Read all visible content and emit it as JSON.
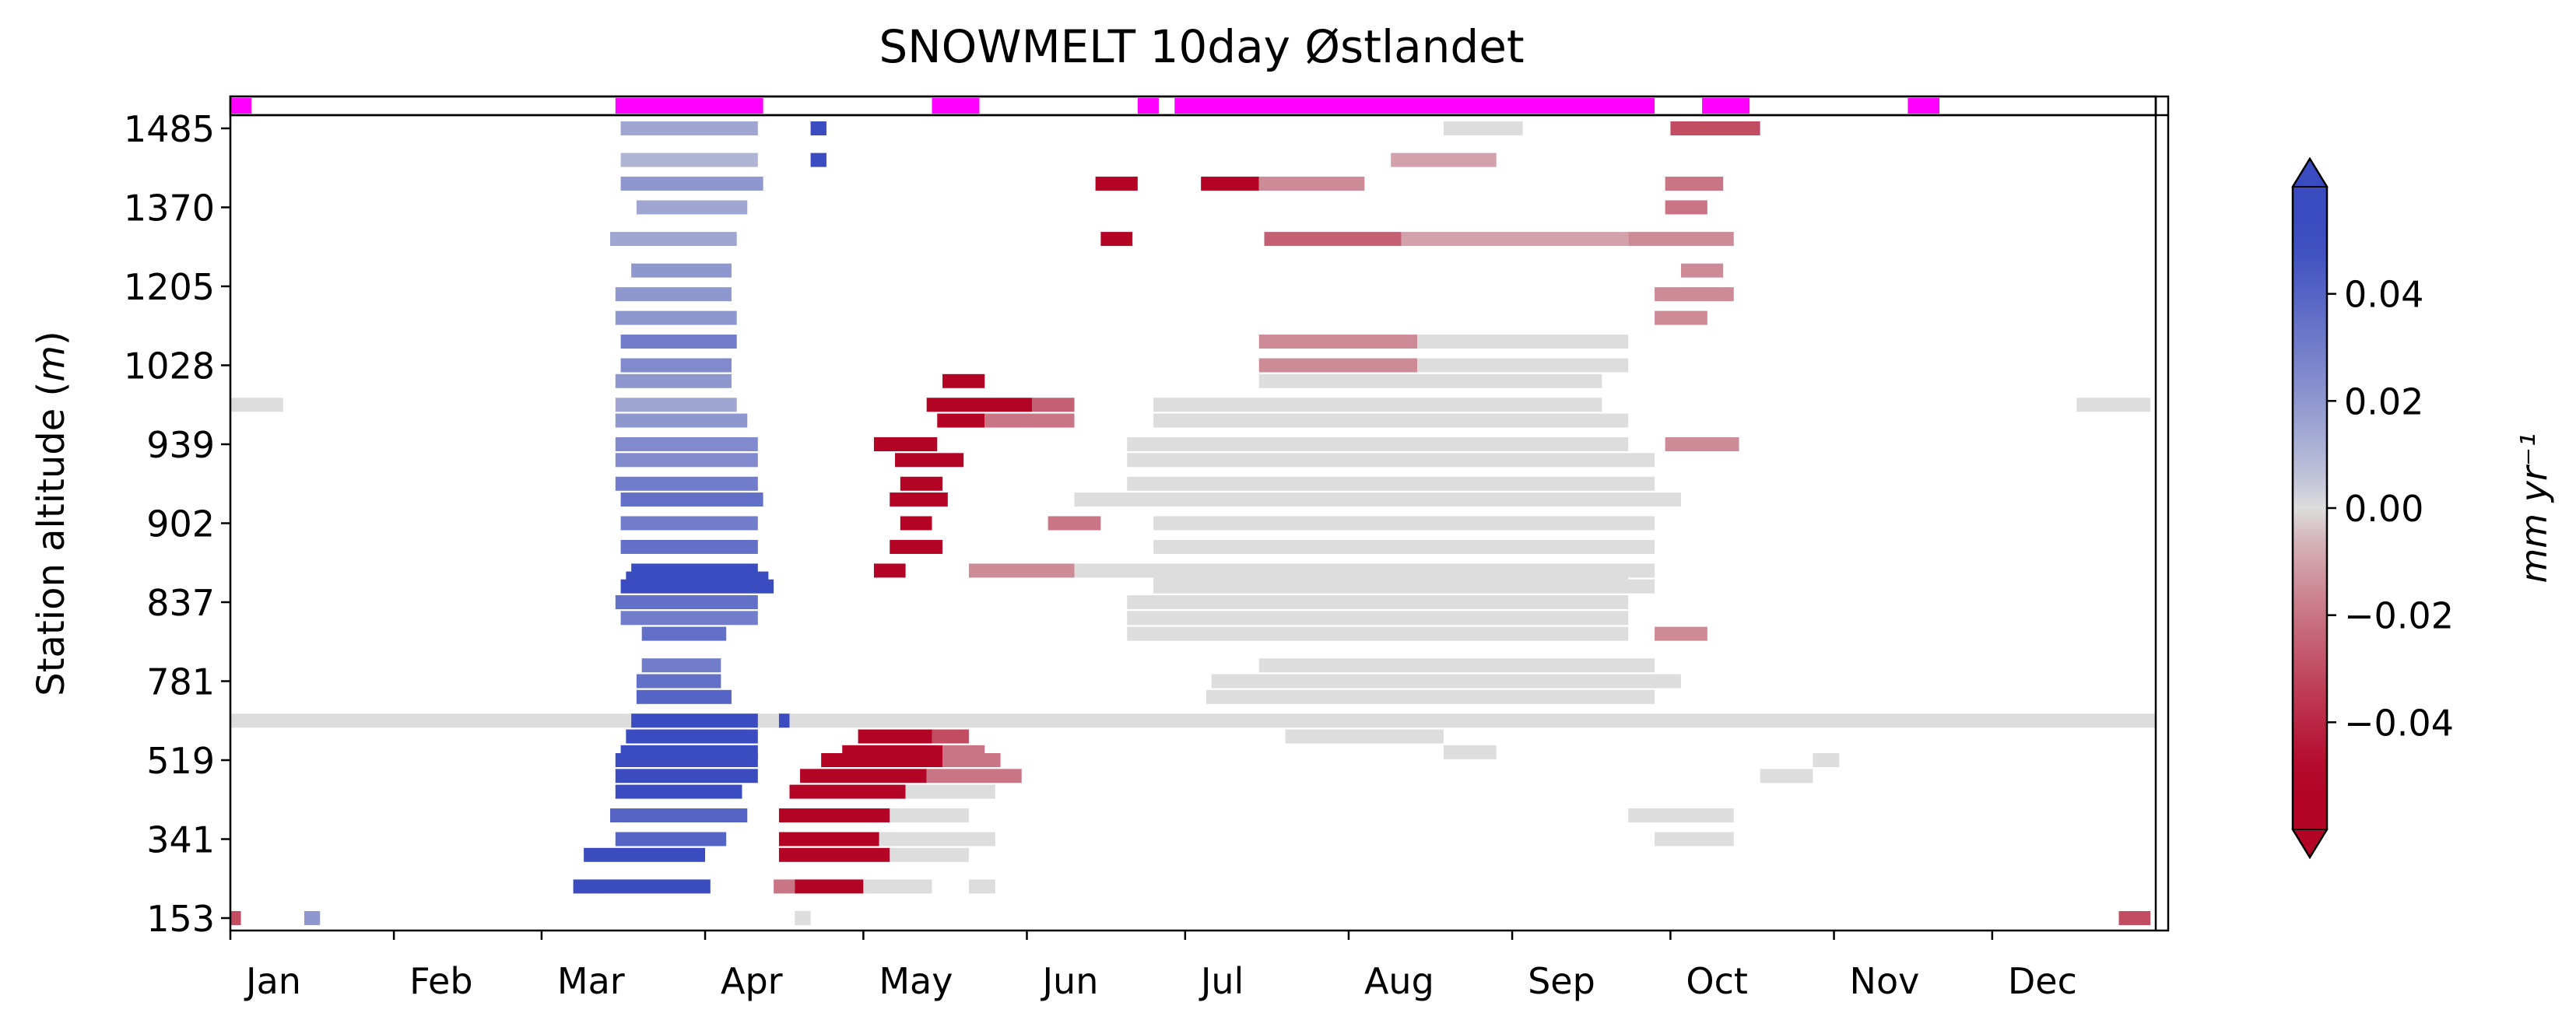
{
  "chart_data": {
    "type": "heatmap",
    "title": "SNOWMELT 10day Østlandet",
    "ylabel": "Station altitude (m)",
    "xlabel": "",
    "x_months": [
      "Jan",
      "Feb",
      "Mar",
      "Apr",
      "May",
      "Jun",
      "Jul",
      "Aug",
      "Sep",
      "Oct",
      "Nov",
      "Dec"
    ],
    "x_range_days": [
      0,
      365
    ],
    "y_ticks": [
      "153",
      "341",
      "519",
      "781",
      "837",
      "902",
      "939",
      "1028",
      "1205",
      "1370",
      "1485"
    ],
    "y_range": [
      0,
      10
    ],
    "colorbar": {
      "label": "mm yr⁻¹",
      "ticks": [
        "0.04",
        "0.02",
        "0.00",
        "−0.02",
        "−0.04"
      ],
      "tick_values": [
        0.04,
        0.02,
        0.0,
        -0.02,
        -0.04
      ],
      "range": [
        -0.06,
        0.06
      ],
      "extend": "both",
      "colormap": "coolwarm_r",
      "color_high": "#3b4cc0",
      "color_zero": "#dddddd",
      "color_low": "#b40426"
    },
    "top_flag_periods_days": [
      [
        0,
        4
      ],
      [
        73,
        101
      ],
      [
        133,
        142
      ],
      [
        172,
        176
      ],
      [
        179,
        270
      ],
      [
        279,
        288
      ],
      [
        318,
        324
      ]
    ],
    "top_flag_color": "#ff00ff",
    "grid": false,
    "bands": [
      {
        "y": 0.0,
        "x": [
          0,
          2
        ],
        "v": -0.03
      },
      {
        "y": 0.0,
        "x": [
          14,
          17
        ],
        "v": 0.02
      },
      {
        "y": 0.0,
        "x": [
          107,
          110
        ],
        "v": 0
      },
      {
        "y": 0.0,
        "x": [
          358,
          364
        ],
        "v": -0.03
      },
      {
        "y": 0.4,
        "x": [
          65,
          70
        ],
        "v": 0.06
      },
      {
        "y": 0.4,
        "x": [
          70,
          91
        ],
        "v": 0.055
      },
      {
        "y": 0.4,
        "x": [
          103,
          107
        ],
        "v": -0.02
      },
      {
        "y": 0.4,
        "x": [
          107,
          120
        ],
        "v": -0.06
      },
      {
        "y": 0.4,
        "x": [
          120,
          133
        ],
        "v": 0
      },
      {
        "y": 0.4,
        "x": [
          140,
          145
        ],
        "v": 0
      },
      {
        "y": 0.8,
        "x": [
          67,
          90
        ],
        "v": 0.05
      },
      {
        "y": 0.8,
        "x": [
          104,
          125
        ],
        "v": -0.06
      },
      {
        "y": 0.8,
        "x": [
          125,
          140
        ],
        "v": 0
      },
      {
        "y": 1.0,
        "x": [
          73,
          94
        ],
        "v": 0.04
      },
      {
        "y": 1.0,
        "x": [
          104,
          123
        ],
        "v": -0.06
      },
      {
        "y": 1.0,
        "x": [
          123,
          145
        ],
        "v": 0
      },
      {
        "y": 1.0,
        "x": [
          270,
          285
        ],
        "v": 0
      },
      {
        "y": 1.3,
        "x": [
          72,
          98
        ],
        "v": 0.04
      },
      {
        "y": 1.3,
        "x": [
          104,
          125
        ],
        "v": -0.06
      },
      {
        "y": 1.3,
        "x": [
          125,
          140
        ],
        "v": 0
      },
      {
        "y": 1.3,
        "x": [
          265,
          285
        ],
        "v": 0
      },
      {
        "y": 1.6,
        "x": [
          73,
          97
        ],
        "v": 0.05
      },
      {
        "y": 1.6,
        "x": [
          106,
          128
        ],
        "v": -0.06
      },
      {
        "y": 1.6,
        "x": [
          128,
          145
        ],
        "v": 0
      },
      {
        "y": 1.8,
        "x": [
          73,
          100
        ],
        "v": 0.055
      },
      {
        "y": 1.8,
        "x": [
          108,
          132
        ],
        "v": -0.06
      },
      {
        "y": 1.8,
        "x": [
          132,
          150
        ],
        "v": -0.02
      },
      {
        "y": 1.8,
        "x": [
          290,
          300
        ],
        "v": 0
      },
      {
        "y": 2.0,
        "x": [
          73,
          100
        ],
        "v": 0.055
      },
      {
        "y": 2.0,
        "x": [
          112,
          135
        ],
        "v": -0.06
      },
      {
        "y": 2.0,
        "x": [
          135,
          146
        ],
        "v": -0.02
      },
      {
        "y": 2.0,
        "x": [
          300,
          305
        ],
        "v": 0
      },
      {
        "y": 2.1,
        "x": [
          74,
          100
        ],
        "v": 0.055
      },
      {
        "y": 2.1,
        "x": [
          116,
          135
        ],
        "v": -0.06
      },
      {
        "y": 2.1,
        "x": [
          135,
          143
        ],
        "v": -0.02
      },
      {
        "y": 2.1,
        "x": [
          230,
          240
        ],
        "v": 0
      },
      {
        "y": 2.3,
        "x": [
          75,
          100
        ],
        "v": 0.05
      },
      {
        "y": 2.3,
        "x": [
          119,
          133
        ],
        "v": -0.06
      },
      {
        "y": 2.3,
        "x": [
          133,
          140
        ],
        "v": -0.03
      },
      {
        "y": 2.3,
        "x": [
          200,
          230
        ],
        "v": 0
      },
      {
        "y": 2.5,
        "x": [
          0,
          365
        ],
        "v": 0
      },
      {
        "y": 2.5,
        "x": [
          76,
          100
        ],
        "v": 0.055
      },
      {
        "y": 2.5,
        "x": [
          104,
          106
        ],
        "v": 0.06
      },
      {
        "y": 2.8,
        "x": [
          77,
          95
        ],
        "v": 0.04
      },
      {
        "y": 2.8,
        "x": [
          185,
          270
        ],
        "v": 0
      },
      {
        "y": 3.0,
        "x": [
          77,
          93
        ],
        "v": 0.035
      },
      {
        "y": 3.0,
        "x": [
          186,
          275
        ],
        "v": 0
      },
      {
        "y": 3.2,
        "x": [
          78,
          93
        ],
        "v": 0.03
      },
      {
        "y": 3.2,
        "x": [
          195,
          270
        ],
        "v": 0
      },
      {
        "y": 3.6,
        "x": [
          78,
          94
        ],
        "v": 0.035
      },
      {
        "y": 3.6,
        "x": [
          170,
          265
        ],
        "v": 0
      },
      {
        "y": 3.6,
        "x": [
          270,
          280
        ],
        "v": -0.015
      },
      {
        "y": 3.8,
        "x": [
          74,
          100
        ],
        "v": 0.03
      },
      {
        "y": 3.8,
        "x": [
          170,
          265
        ],
        "v": 0
      },
      {
        "y": 4.0,
        "x": [
          73,
          100
        ],
        "v": 0.035
      },
      {
        "y": 4.0,
        "x": [
          170,
          265
        ],
        "v": 0
      },
      {
        "y": 4.2,
        "x": [
          74,
          103
        ],
        "v": 0.05
      },
      {
        "y": 4.2,
        "x": [
          175,
          270
        ],
        "v": 0
      },
      {
        "y": 4.3,
        "x": [
          75,
          102
        ],
        "v": 0.055
      },
      {
        "y": 4.3,
        "x": [
          175,
          265
        ],
        "v": 0
      },
      {
        "y": 4.4,
        "x": [
          76,
          100
        ],
        "v": 0.05
      },
      {
        "y": 4.4,
        "x": [
          122,
          128
        ],
        "v": -0.06
      },
      {
        "y": 4.4,
        "x": [
          140,
          160
        ],
        "v": -0.015
      },
      {
        "y": 4.4,
        "x": [
          160,
          270
        ],
        "v": 0
      },
      {
        "y": 4.7,
        "x": [
          74,
          100
        ],
        "v": 0.035
      },
      {
        "y": 4.7,
        "x": [
          125,
          135
        ],
        "v": -0.06
      },
      {
        "y": 4.7,
        "x": [
          175,
          270
        ],
        "v": 0
      },
      {
        "y": 5.0,
        "x": [
          74,
          100
        ],
        "v": 0.03
      },
      {
        "y": 5.0,
        "x": [
          127,
          133
        ],
        "v": -0.06
      },
      {
        "y": 5.0,
        "x": [
          155,
          165
        ],
        "v": -0.02
      },
      {
        "y": 5.0,
        "x": [
          175,
          270
        ],
        "v": 0
      },
      {
        "y": 5.3,
        "x": [
          74,
          101
        ],
        "v": 0.035
      },
      {
        "y": 5.3,
        "x": [
          125,
          136
        ],
        "v": -0.06
      },
      {
        "y": 5.3,
        "x": [
          160,
          275
        ],
        "v": 0
      },
      {
        "y": 5.5,
        "x": [
          73,
          100
        ],
        "v": 0.03
      },
      {
        "y": 5.5,
        "x": [
          127,
          135
        ],
        "v": -0.06
      },
      {
        "y": 5.5,
        "x": [
          170,
          270
        ],
        "v": 0
      },
      {
        "y": 5.8,
        "x": [
          73,
          100
        ],
        "v": 0.025
      },
      {
        "y": 5.8,
        "x": [
          126,
          139
        ],
        "v": -0.06
      },
      {
        "y": 5.8,
        "x": [
          170,
          270
        ],
        "v": 0
      },
      {
        "y": 6.0,
        "x": [
          73,
          100
        ],
        "v": 0.025
      },
      {
        "y": 6.0,
        "x": [
          122,
          134
        ],
        "v": -0.06
      },
      {
        "y": 6.0,
        "x": [
          170,
          265
        ],
        "v": 0
      },
      {
        "y": 6.0,
        "x": [
          272,
          286
        ],
        "v": -0.015
      },
      {
        "y": 6.3,
        "x": [
          73,
          98
        ],
        "v": 0.02
      },
      {
        "y": 6.3,
        "x": [
          134,
          143
        ],
        "v": -0.06
      },
      {
        "y": 6.3,
        "x": [
          143,
          160
        ],
        "v": -0.02
      },
      {
        "y": 6.3,
        "x": [
          175,
          265
        ],
        "v": 0
      },
      {
        "y": 6.5,
        "x": [
          73,
          96
        ],
        "v": 0.015
      },
      {
        "y": 6.5,
        "x": [
          132,
          152
        ],
        "v": -0.06
      },
      {
        "y": 6.5,
        "x": [
          152,
          160
        ],
        "v": -0.025
      },
      {
        "y": 6.5,
        "x": [
          175,
          260
        ],
        "v": 0
      },
      {
        "y": 6.5,
        "x": [
          0,
          10
        ],
        "v": 0
      },
      {
        "y": 6.5,
        "x": [
          350,
          364
        ],
        "v": 0
      },
      {
        "y": 6.8,
        "x": [
          73,
          95
        ],
        "v": 0.02
      },
      {
        "y": 6.8,
        "x": [
          135,
          143
        ],
        "v": -0.06
      },
      {
        "y": 6.8,
        "x": [
          195,
          260
        ],
        "v": 0
      },
      {
        "y": 7.0,
        "x": [
          74,
          95
        ],
        "v": 0.025
      },
      {
        "y": 7.0,
        "x": [
          195,
          225
        ],
        "v": -0.015
      },
      {
        "y": 7.0,
        "x": [
          225,
          265
        ],
        "v": 0
      },
      {
        "y": 7.3,
        "x": [
          74,
          96
        ],
        "v": 0.03
      },
      {
        "y": 7.3,
        "x": [
          195,
          225
        ],
        "v": -0.015
      },
      {
        "y": 7.3,
        "x": [
          225,
          265
        ],
        "v": 0
      },
      {
        "y": 7.6,
        "x": [
          73,
          96
        ],
        "v": 0.02
      },
      {
        "y": 7.6,
        "x": [
          270,
          280
        ],
        "v": -0.015
      },
      {
        "y": 7.9,
        "x": [
          73,
          95
        ],
        "v": 0.02
      },
      {
        "y": 7.9,
        "x": [
          270,
          285
        ],
        "v": -0.015
      },
      {
        "y": 8.2,
        "x": [
          76,
          95
        ],
        "v": 0.02
      },
      {
        "y": 8.2,
        "x": [
          275,
          283
        ],
        "v": -0.015
      },
      {
        "y": 8.6,
        "x": [
          72,
          96
        ],
        "v": 0.015
      },
      {
        "y": 8.6,
        "x": [
          196,
          222
        ],
        "v": -0.025
      },
      {
        "y": 8.6,
        "x": [
          222,
          265
        ],
        "v": -0.01
      },
      {
        "y": 8.6,
        "x": [
          265,
          285
        ],
        "v": -0.015
      },
      {
        "y": 8.6,
        "x": [
          165,
          171
        ],
        "v": -0.06
      },
      {
        "y": 9.0,
        "x": [
          77,
          98
        ],
        "v": 0.015
      },
      {
        "y": 9.0,
        "x": [
          272,
          280
        ],
        "v": -0.02
      },
      {
        "y": 9.3,
        "x": [
          74,
          101
        ],
        "v": 0.02
      },
      {
        "y": 9.3,
        "x": [
          164,
          172
        ],
        "v": -0.06
      },
      {
        "y": 9.3,
        "x": [
          184,
          195
        ],
        "v": -0.06
      },
      {
        "y": 9.3,
        "x": [
          195,
          215
        ],
        "v": -0.015
      },
      {
        "y": 9.3,
        "x": [
          272,
          283
        ],
        "v": -0.02
      },
      {
        "y": 9.6,
        "x": [
          74,
          100
        ],
        "v": 0.01
      },
      {
        "y": 9.6,
        "x": [
          220,
          240
        ],
        "v": -0.01
      },
      {
        "y": 9.6,
        "x": [
          110,
          113
        ],
        "v": 0.05
      },
      {
        "y": 10.0,
        "x": [
          74,
          100
        ],
        "v": 0.015
      },
      {
        "y": 10.0,
        "x": [
          110,
          113
        ],
        "v": 0.05
      },
      {
        "y": 10.0,
        "x": [
          273,
          290
        ],
        "v": -0.03
      },
      {
        "y": 10.0,
        "x": [
          230,
          245
        ],
        "v": 0
      }
    ]
  }
}
